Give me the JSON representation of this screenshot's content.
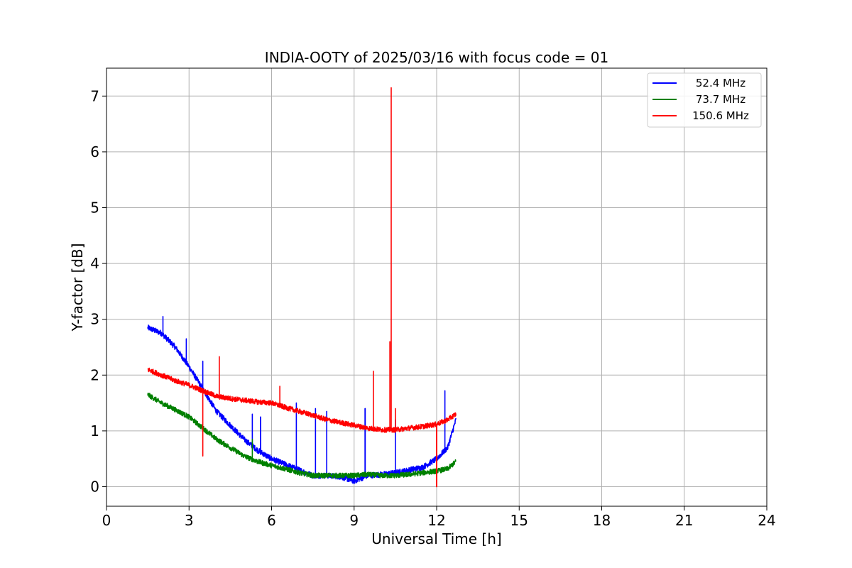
{
  "chart_data": {
    "type": "line",
    "title": "INDIA-OOTY of 2025/03/16 with focus code = 01",
    "xlabel": "Universal Time [h]",
    "ylabel": "Y-factor [dB]",
    "xlim": [
      0,
      24
    ],
    "ylim": [
      -0.35,
      7.5
    ],
    "x_ticks": [
      0,
      3,
      6,
      9,
      12,
      15,
      18,
      21,
      24
    ],
    "y_ticks": [
      0,
      1,
      2,
      3,
      4,
      5,
      6,
      7
    ],
    "grid": true,
    "legend_position": "top-right",
    "series": [
      {
        "name": "52.4 MHz",
        "color": "#0000ff",
        "noise": 0.05,
        "x": [
          1.5,
          2.0,
          2.5,
          3.0,
          3.5,
          4.0,
          4.5,
          5.0,
          5.5,
          6.0,
          6.5,
          7.0,
          7.5,
          8.0,
          8.5,
          9.0,
          9.5,
          10.0,
          10.5,
          11.0,
          11.5,
          12.0,
          12.4,
          12.7
        ],
        "y": [
          2.85,
          2.75,
          2.5,
          2.15,
          1.75,
          1.35,
          1.1,
          0.85,
          0.65,
          0.5,
          0.4,
          0.3,
          0.2,
          0.2,
          0.18,
          0.1,
          0.2,
          0.22,
          0.25,
          0.3,
          0.35,
          0.5,
          0.7,
          1.2
        ],
        "spikes": [
          [
            1.6,
            3.12
          ],
          [
            2.05,
            3.05
          ],
          [
            2.9,
            2.65
          ],
          [
            3.5,
            2.25
          ],
          [
            5.3,
            1.3
          ],
          [
            5.6,
            1.25
          ],
          [
            6.9,
            1.5
          ],
          [
            7.6,
            1.4
          ],
          [
            8.0,
            1.35
          ],
          [
            9.4,
            1.4
          ],
          [
            10.5,
            1.2
          ],
          [
            12.3,
            1.72
          ]
        ]
      },
      {
        "name": "73.7 MHz",
        "color": "#008000",
        "noise": 0.045,
        "x": [
          1.5,
          2.0,
          2.5,
          3.0,
          3.5,
          4.0,
          4.5,
          5.0,
          5.5,
          6.0,
          6.5,
          7.0,
          7.5,
          8.0,
          8.5,
          9.0,
          9.5,
          10.0,
          10.5,
          11.0,
          11.5,
          12.0,
          12.4,
          12.7
        ],
        "y": [
          1.65,
          1.5,
          1.38,
          1.25,
          1.05,
          0.85,
          0.7,
          0.55,
          0.45,
          0.38,
          0.32,
          0.25,
          0.2,
          0.2,
          0.2,
          0.2,
          0.22,
          0.2,
          0.2,
          0.22,
          0.25,
          0.28,
          0.32,
          0.45
        ],
        "spikes": [
          [
            2.0,
            1.72
          ],
          [
            3.0,
            1.47
          ],
          [
            5.3,
            0.85
          ]
        ]
      },
      {
        "name": "150.6 MHz",
        "color": "#ff0000",
        "noise": 0.045,
        "x": [
          1.5,
          2.0,
          2.5,
          3.0,
          3.5,
          4.0,
          4.5,
          5.0,
          5.5,
          6.0,
          6.5,
          7.0,
          7.5,
          8.0,
          8.5,
          9.0,
          9.5,
          10.0,
          10.5,
          11.0,
          11.5,
          12.0,
          12.4,
          12.7
        ],
        "y": [
          2.1,
          2.0,
          1.9,
          1.82,
          1.72,
          1.62,
          1.58,
          1.55,
          1.52,
          1.5,
          1.42,
          1.35,
          1.28,
          1.2,
          1.15,
          1.1,
          1.05,
          1.02,
          1.02,
          1.05,
          1.08,
          1.12,
          1.2,
          1.3
        ],
        "spikes": [
          [
            4.1,
            2.33
          ],
          [
            6.3,
            1.8
          ],
          [
            9.7,
            2.07
          ],
          [
            10.3,
            2.6
          ],
          [
            10.35,
            7.15
          ],
          [
            10.5,
            1.4
          ]
        ],
        "dips": [
          [
            3.5,
            0.55
          ],
          [
            12.0,
            0.0
          ]
        ]
      }
    ]
  }
}
